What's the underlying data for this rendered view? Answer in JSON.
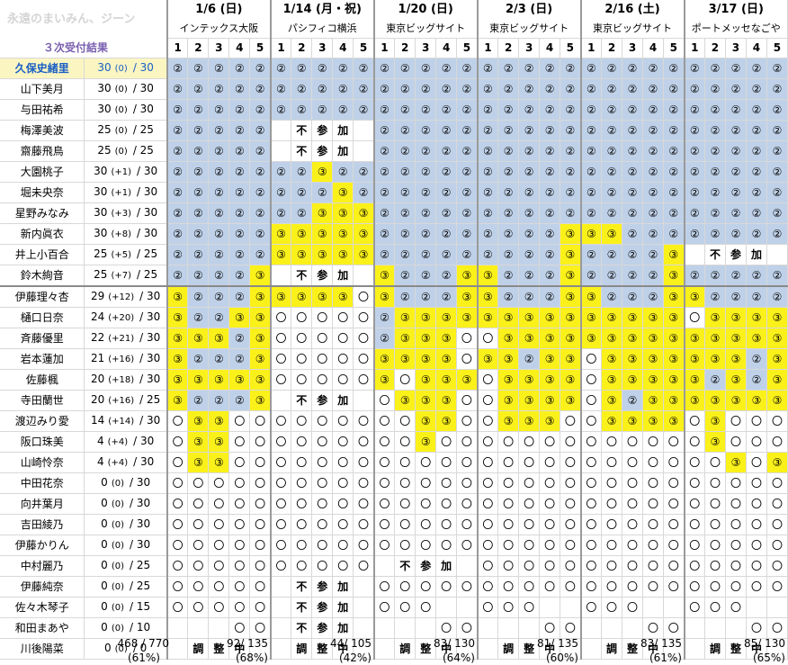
{
  "header": {
    "watermark": "永遠のまいみん、ジーン",
    "title": "３次受付結果"
  },
  "dates": [
    {
      "date": "1/6 (日)",
      "venue": "インテックス大阪"
    },
    {
      "date": "1/14 (月・祝)",
      "venue": "パシフィコ横浜"
    },
    {
      "date": "1/20 (日)",
      "venue": "東京ビッグサイト"
    },
    {
      "date": "2/3 (日)",
      "venue": "東京ビッグサイト"
    },
    {
      "date": "2/16 (土)",
      "venue": "東京ビッグサイト"
    },
    {
      "date": "3/17 (日)",
      "venue": "ポートメッセなごや"
    }
  ],
  "parts": [
    "1",
    "2",
    "3",
    "4",
    "5"
  ],
  "members": [
    {
      "name": "久保史緒里",
      "total": "30",
      "delta": "(0)",
      "max": "/ 30",
      "highlight": true,
      "cells": "bbbbbbbbbbbbbbbbbbbbbbbbbbbbbb"
    },
    {
      "name": "山下美月",
      "total": "30",
      "delta": "(0)",
      "max": "/ 30",
      "cells": "bbbbbbbbbbbbbbbbbbbbbbbbbbbbbb"
    },
    {
      "name": "与田祐希",
      "total": "30",
      "delta": "(0)",
      "max": "/ 30",
      "cells": "bbbbbbbbbbbbbbbbbbbbbbbbbbbbbb"
    },
    {
      "name": "梅澤美波",
      "total": "25",
      "delta": "(0)",
      "max": "/ 25",
      "cells": "bbbbbxNSKxbbbbbbbbbbbbbbbbbbbb"
    },
    {
      "name": "齋藤飛鳥",
      "total": "25",
      "delta": "(0)",
      "max": "/ 25",
      "cells": "bbbbbxNSKxbbbbbbbbbbbbbbbbbbbb"
    },
    {
      "name": "大園桃子",
      "total": "30",
      "delta": "(+1)",
      "max": "/ 30",
      "cells": "bbbbbbbybbbbbbbbbbbbbbbbbbbbbb"
    },
    {
      "name": "堀未央奈",
      "total": "30",
      "delta": "(+1)",
      "max": "/ 30",
      "cells": "bbbbbbbbybbbbbbbbbbbbbbbbbbbbb"
    },
    {
      "name": "星野みなみ",
      "total": "30",
      "delta": "(+3)",
      "max": "/ 30",
      "cells": "bbbbbbbyyybbbbbbbbbbbbbbbbbbbb"
    },
    {
      "name": "新内眞衣",
      "total": "30",
      "delta": "(+8)",
      "max": "/ 30",
      "cells": "bbbbbyyyyybbbbbbbbbyyybbbbbbbb"
    },
    {
      "name": "井上小百合",
      "total": "25",
      "delta": "(+5)",
      "max": "/ 25",
      "cells": "bbbbbyyyyybbbbbbbbbybbbbyxNSKx"
    },
    {
      "name": "鈴木絢音",
      "total": "25",
      "delta": "(+7)",
      "max": "/ 25",
      "cells": "bbbbyxNSKxybbbyybbbybbbbybbbbb"
    },
    {
      "name": "伊藤理々杏",
      "total": "29",
      "delta": "(+12)",
      "max": "/ 30",
      "sep": true,
      "cells": "ybbbyyyyyoybbbyybbbyybbbyybbbb"
    },
    {
      "name": "樋口日奈",
      "total": "24",
      "delta": "(+20)",
      "max": "/ 30",
      "cells": "ybbyyooooobyyyyyyyyyyyyyyoyyyy"
    },
    {
      "name": "斉藤優里",
      "total": "22",
      "delta": "(+21)",
      "max": "/ 30",
      "cells": "yyybyooooobyyyooyyyyyyyyyyyyyy"
    },
    {
      "name": "岩本蓮加",
      "total": "21",
      "delta": "(+16)",
      "max": "/ 30",
      "cells": "ybbbyoooooyyyyoyybyyoyyyyyyyby"
    },
    {
      "name": "佐藤楓",
      "total": "20",
      "delta": "(+18)",
      "max": "/ 30",
      "cells": "yyyyyoooooyoyyyoyyyyoyyyyybyby"
    },
    {
      "name": "寺田蘭世",
      "total": "20",
      "delta": "(+16)",
      "max": "/ 25",
      "cells": "ybbbyxNSKxoyyyooyyyyoybyyyyyyy"
    },
    {
      "name": "渡辺みり愛",
      "total": "14",
      "delta": "(+14)",
      "max": "/ 30",
      "cells": "oyyoooooooooyyooyyyooyyyyoyooo"
    },
    {
      "name": "阪口珠美",
      "total": "4",
      "delta": "(+4)",
      "max": "/ 30",
      "cells": "oyyoooooooooyoooooooooooooyooo"
    },
    {
      "name": "山崎怜奈",
      "total": "4",
      "delta": "(+4)",
      "max": "/ 30",
      "cells": "oyyooooooooooooooooooooooooyoy"
    },
    {
      "name": "中田花奈",
      "total": "0",
      "delta": "(0)",
      "max": "/ 30",
      "cells": "oooooooooooooooooooooooooooooo"
    },
    {
      "name": "向井葉月",
      "total": "0",
      "delta": "(0)",
      "max": "/ 30",
      "cells": "oooooooooooooooooooooooooooooo"
    },
    {
      "name": "吉田綾乃",
      "total": "0",
      "delta": "(0)",
      "max": "/ 30",
      "cells": "oooooooooooooooooooooooooooooo"
    },
    {
      "name": "伊藤かりん",
      "total": "0",
      "delta": "(0)",
      "max": "/ 30",
      "cells": "oooooooooooooooooooooooooooooo"
    },
    {
      "name": "中村麗乃",
      "total": "0",
      "delta": "(0)",
      "max": "/ 25",
      "cells": "ooooooooooxNSKxooooooooooooooo"
    },
    {
      "name": "伊藤純奈",
      "total": "0",
      "delta": "(0)",
      "max": "/ 25",
      "cells": "oooooxNSKxoooooooooooooooooooo"
    },
    {
      "name": "佐々木琴子",
      "total": "0",
      "delta": "(0)",
      "max": "/ 15",
      "cells": "oooooxNSKxoooxxoooxxoooxxoooxx"
    },
    {
      "name": "和田まあや",
      "total": "0",
      "delta": "(0)",
      "max": "/ 10",
      "cells": "xxxooxNSKxxxxooxxxooxxxooxxxoo"
    },
    {
      "name": "川後陽菜",
      "total": "0",
      "delta": "(0)",
      "max": "/ 0",
      "cells": "xCAMxxCAMxxCAMxxCAMxxCAMxxCAMx"
    }
  ],
  "symbols": {
    "b": "②",
    "y": "③",
    "o": "〇",
    "x": "",
    "N": "不",
    "S": "参",
    "K": "加",
    "C": "調",
    "A": "整",
    "M": "中"
  },
  "colors": {
    "blue": "#bfd1e8",
    "yellow": "#fbf11a",
    "highlight": "#fbf5c2",
    "accent": "#1a5fc4"
  },
  "summary": {
    "total": "468 / 770",
    "total_pct": "(61%)",
    "per_date": [
      {
        "count": "92/ 135",
        "pct": "(68%)"
      },
      {
        "count": "44/ 105",
        "pct": "(42%)"
      },
      {
        "count": "83/ 130",
        "pct": "(64%)"
      },
      {
        "count": "81/ 135",
        "pct": "(60%)"
      },
      {
        "count": "83/ 135",
        "pct": "(61%)"
      },
      {
        "count": "85/ 130",
        "pct": "(65%)"
      }
    ]
  }
}
